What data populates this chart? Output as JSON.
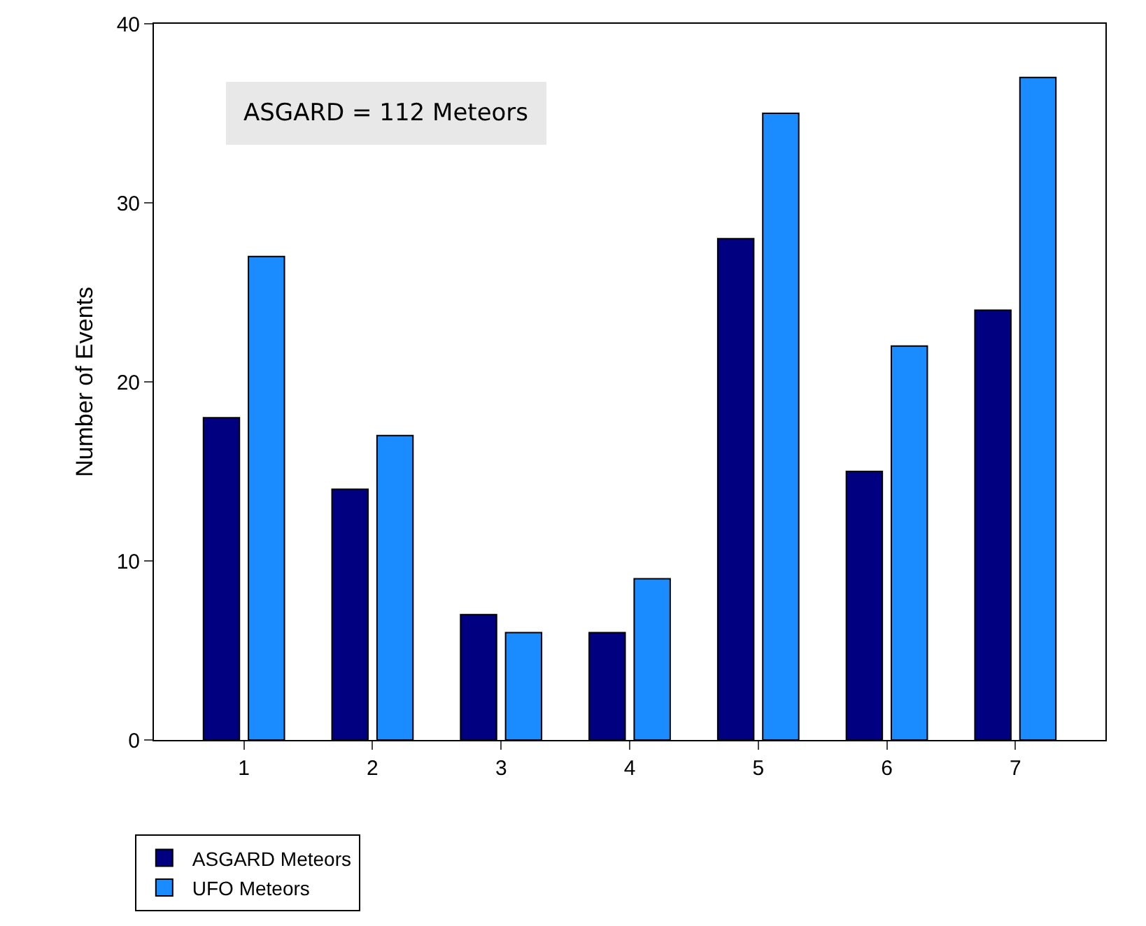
{
  "chart_data": {
    "type": "bar",
    "ylabel": "Number of Events",
    "categories": [
      "1",
      "2",
      "3",
      "4",
      "5",
      "6",
      "7"
    ],
    "series": [
      {
        "name": "ASGARD Meteors",
        "color": "#000080",
        "values": [
          18,
          14,
          7,
          6,
          28,
          15,
          24
        ]
      },
      {
        "name": "UFO Meteors",
        "color": "#1a8cff",
        "values": [
          27,
          17,
          6,
          9,
          35,
          22,
          37
        ]
      }
    ],
    "ylim": [
      0,
      40
    ],
    "yticks": [
      0,
      10,
      20,
      30,
      40
    ],
    "grid": false,
    "legend": "bottom left",
    "annotations": [
      "ASGARD = 112 Meteors"
    ]
  }
}
